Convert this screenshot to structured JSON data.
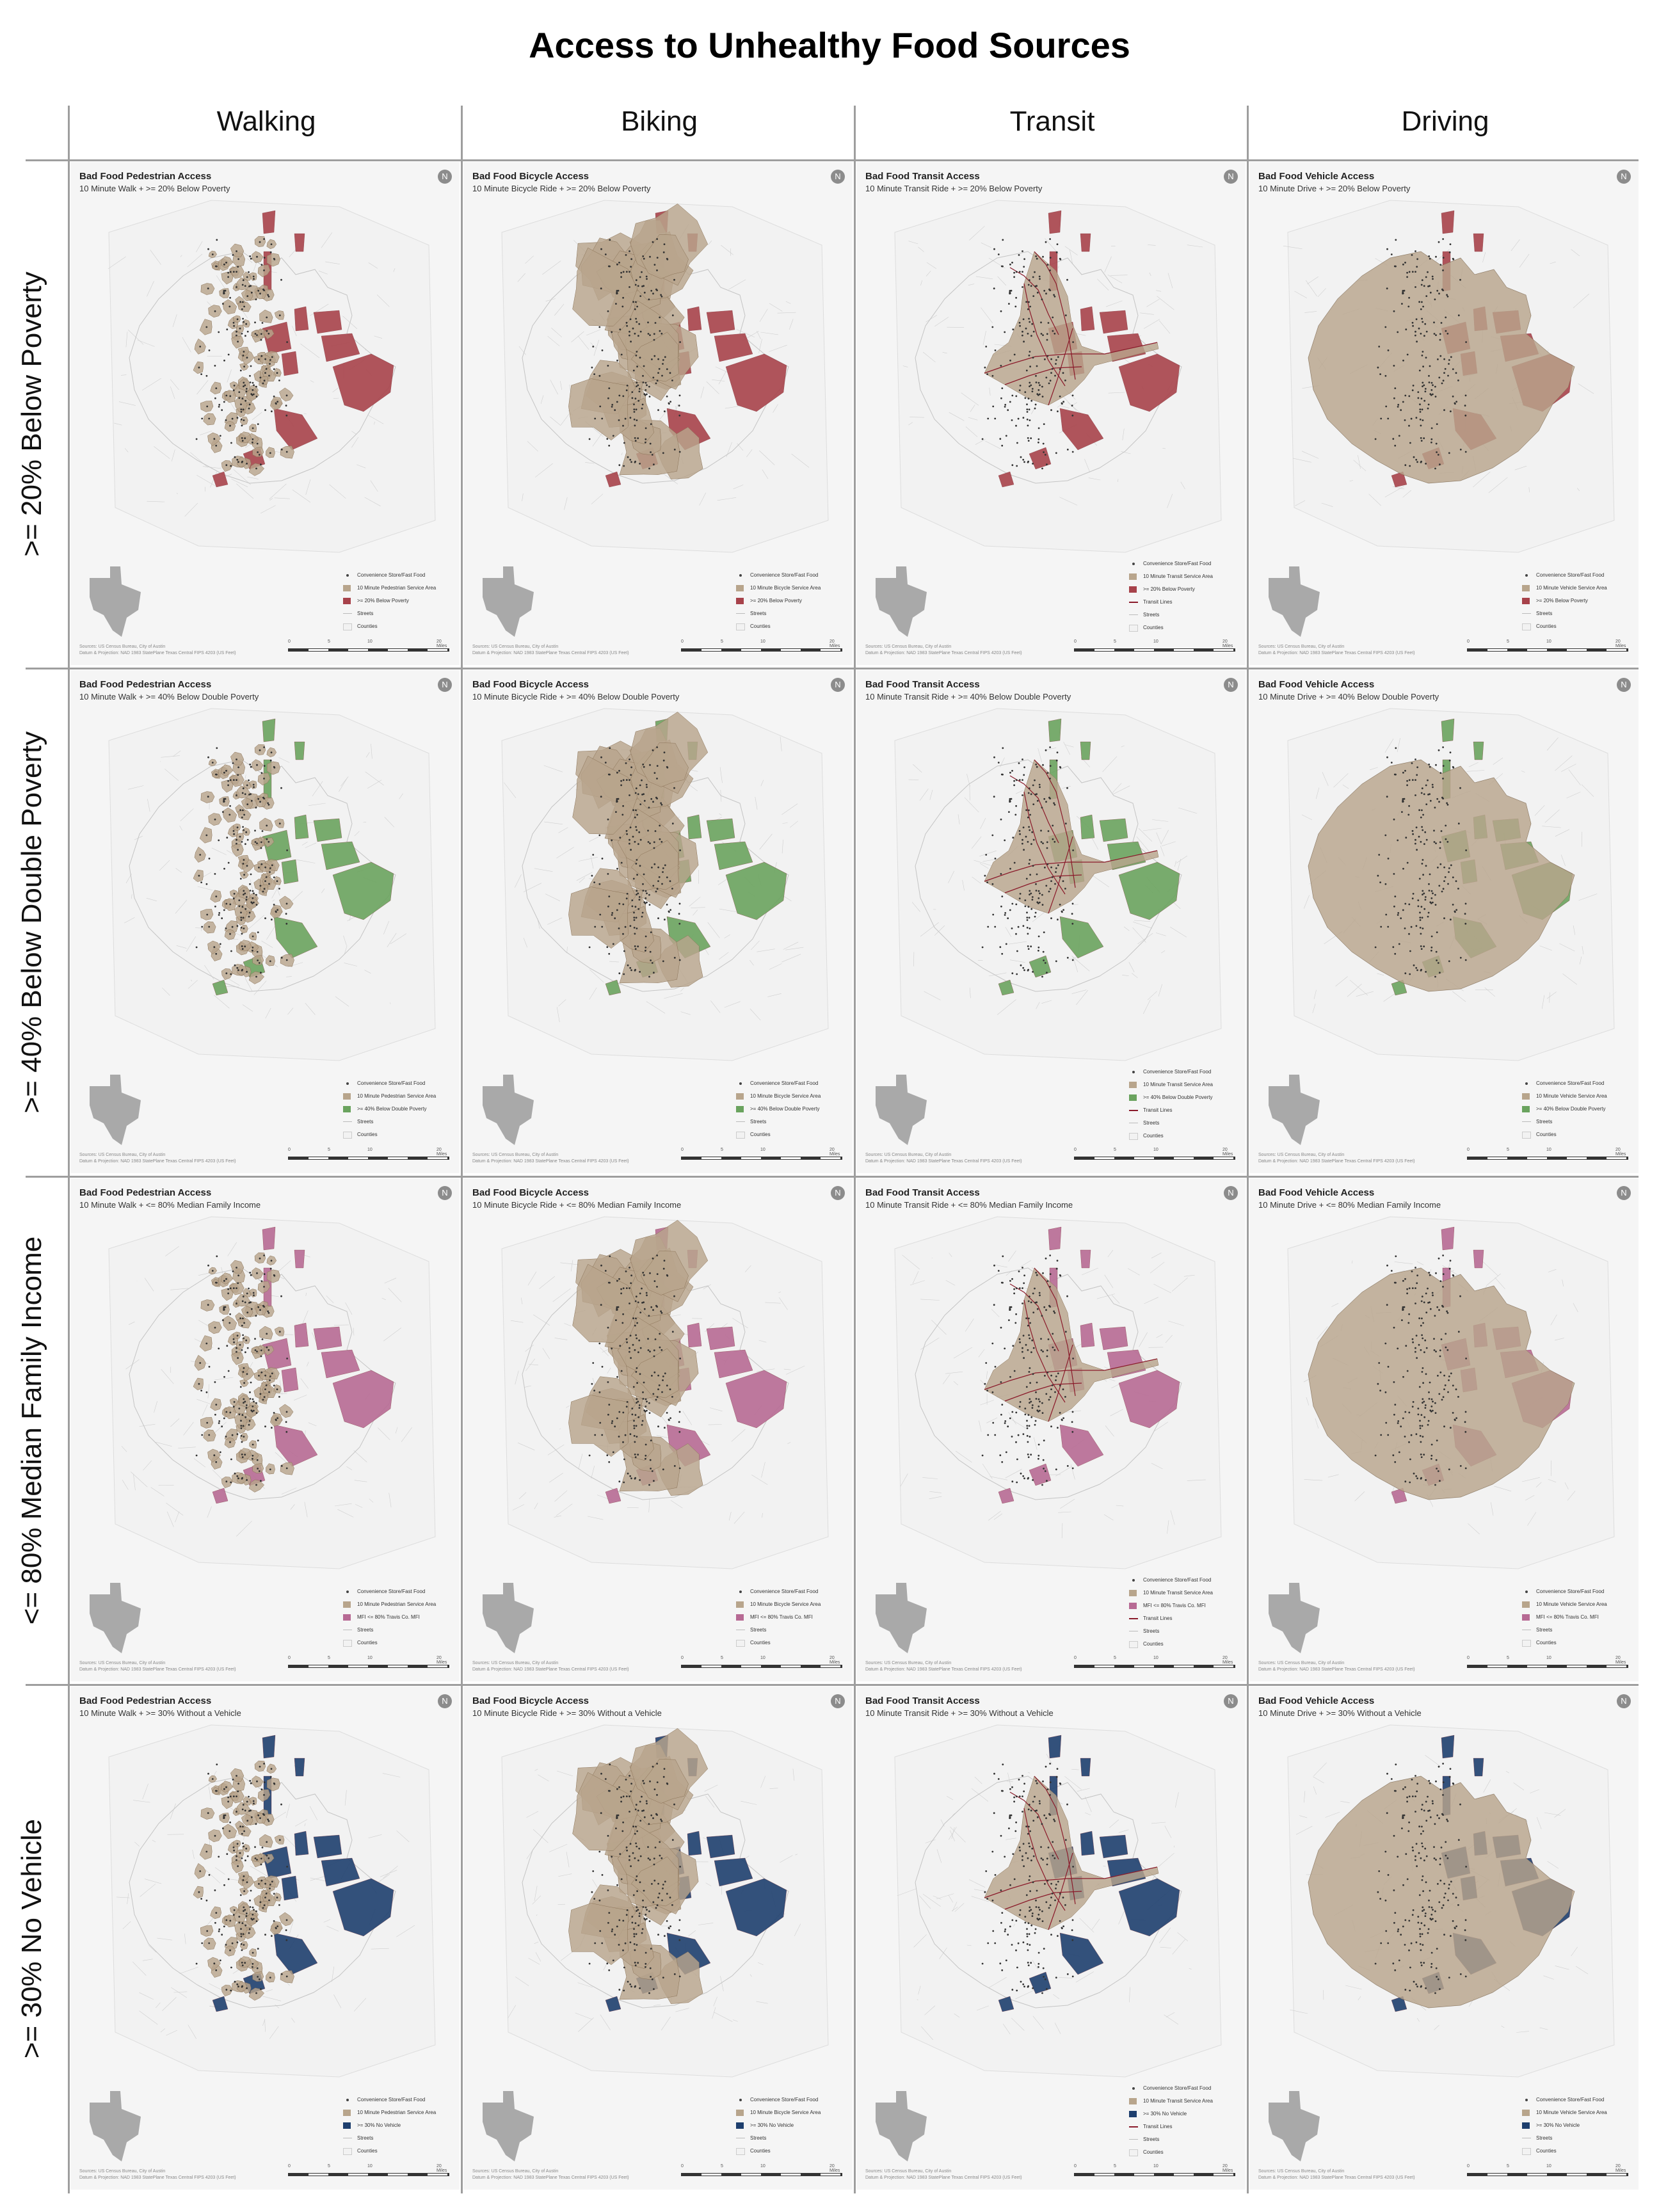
{
  "title": "Access to Unhealthy Food Sources",
  "columns": [
    "Walking",
    "Biking",
    "Transit",
    "Driving"
  ],
  "rows": [
    {
      "label": ">= 20% Below Poverty",
      "subtitle_suffix": ">= 20% Below Poverty",
      "legend_label": ">= 20% Below Poverty",
      "color": "#a7424a"
    },
    {
      "label": ">= 40% Below Double Poverty",
      "subtitle_suffix": ">= 40% Below Double Poverty",
      "legend_label": ">= 40% Below Double Poverty",
      "color": "#6aa35e"
    },
    {
      "label": "<= 80% Median Family Income",
      "subtitle_suffix": "<= 80% Median Family Income",
      "legend_label": "MFI <= 80% Travis Co. MFI",
      "color": "#b76a94"
    },
    {
      "label": ">= 30% No Vehicle",
      "subtitle_suffix": ">= 30% Without a Vehicle",
      "legend_label": ">= 30% No Vehicle",
      "color": "#1e3f6e"
    }
  ],
  "modes": [
    {
      "title": "Bad Food Pedestrian Access",
      "prefix": "10 Minute Walk + ",
      "service_label": "10 Minute Pedestrian Service Area"
    },
    {
      "title": "Bad Food Bicycle Access",
      "prefix": "10 Minute Bicycle Ride + ",
      "service_label": "10 Minute Bicycle Service Area"
    },
    {
      "title": "Bad Food Transit Access",
      "prefix": "10 Minute Transit Ride + ",
      "service_label": "10 Minute Transit Service Area"
    },
    {
      "title": "Bad Food Vehicle Access",
      "prefix": "10 Minute Drive + ",
      "service_label": "10 Minute Vehicle Service Area"
    }
  ],
  "legend_common": {
    "stores": "Convenience Store/Fast Food",
    "transit_lines": "Transit Lines",
    "streets": "Streets",
    "counties": "Counties"
  },
  "source_lines": [
    "Sources: US Census Bureau, City of Austin",
    "Datum & Projection: NAD 1983 StatePlane Texas Central FIPS 4203 (US Feet)"
  ],
  "scale_ticks": [
    "0",
    "5",
    "10",
    "20 Miles"
  ],
  "north_symbol": "N",
  "colors": {
    "service_area": "#b8a58c",
    "service_edge": "#8a7256",
    "transit": "#8a1a2a",
    "streets": "#cfcfcf",
    "texas": "#a9a9a9"
  }
}
